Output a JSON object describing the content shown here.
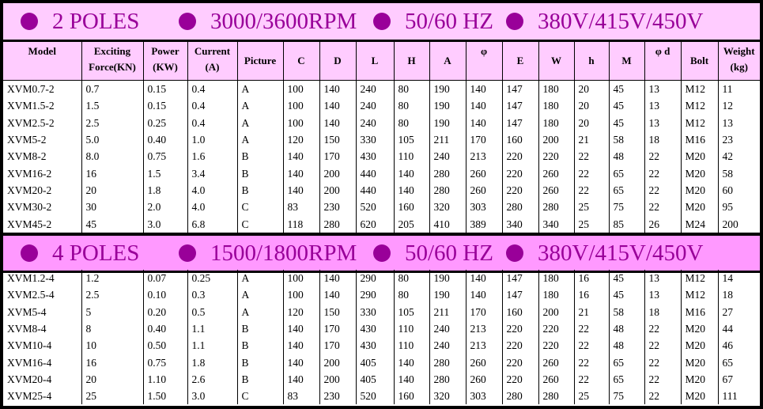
{
  "colors": {
    "banner_2_poles": "#ffccff",
    "banner_4_poles": "#ff99ff",
    "header_bg": "#ffccff",
    "accent": "#990099"
  },
  "banners": [
    {
      "items": [
        "2 POLES",
        "3000/3600RPM",
        "50/60 HZ",
        "380V/415V/450V"
      ]
    },
    {
      "items": [
        "4 POLES",
        "1500/1800RPM",
        "50/60 HZ",
        "380V/415V/450V"
      ]
    }
  ],
  "columns": [
    {
      "l1": "Model",
      "l2": ""
    },
    {
      "l1": "Exciting",
      "l2": "Force(KN)"
    },
    {
      "l1": "Power",
      "l2": "(KW)"
    },
    {
      "l1": "Current",
      "l2": "(A)"
    },
    {
      "l1": "Picture",
      "l2": ""
    },
    {
      "l1": "C",
      "l2": ""
    },
    {
      "l1": "D",
      "l2": ""
    },
    {
      "l1": "L",
      "l2": ""
    },
    {
      "l1": "H",
      "l2": ""
    },
    {
      "l1": "A",
      "l2": ""
    },
    {
      "l1": "φ",
      "l2": ""
    },
    {
      "l1": "E",
      "l2": ""
    },
    {
      "l1": "W",
      "l2": ""
    },
    {
      "l1": "h",
      "l2": ""
    },
    {
      "l1": "M",
      "l2": ""
    },
    {
      "l1": "φ d",
      "l2": ""
    },
    {
      "l1": "Bolt",
      "l2": ""
    },
    {
      "l1": "Weight",
      "l2": "(kg)"
    }
  ],
  "two_poles": [
    [
      "XVM0.7-2",
      "0.7",
      "0.15",
      "0.4",
      "A",
      "100",
      "140",
      "240",
      "80",
      "190",
      "140",
      "147",
      "180",
      "20",
      "45",
      "13",
      "M12",
      "11"
    ],
    [
      "XVM1.5-2",
      "1.5",
      "0.15",
      "0.4",
      "A",
      "100",
      "140",
      "240",
      "80",
      "190",
      "140",
      "147",
      "180",
      "20",
      "45",
      "13",
      "M12",
      "12"
    ],
    [
      "XVM2.5-2",
      "2.5",
      "0.25",
      "0.4",
      "A",
      "100",
      "140",
      "240",
      "80",
      "190",
      "140",
      "147",
      "180",
      "20",
      "45",
      "13",
      "M12",
      "13"
    ],
    [
      "XVM5-2",
      "5.0",
      "0.40",
      "1.0",
      "A",
      "120",
      "150",
      "330",
      "105",
      "211",
      "170",
      "160",
      "200",
      "21",
      "58",
      "18",
      "M16",
      "23"
    ],
    [
      "XVM8-2",
      "8.0",
      "0.75",
      "1.6",
      "B",
      "140",
      "170",
      "430",
      "110",
      "240",
      "213",
      "220",
      "220",
      "22",
      "48",
      "22",
      "M20",
      "42"
    ],
    [
      "XVM16-2",
      "16",
      "1.5",
      "3.4",
      "B",
      "140",
      "200",
      "440",
      "140",
      "280",
      "260",
      "220",
      "260",
      "22",
      "65",
      "22",
      "M20",
      "58"
    ],
    [
      "XVM20-2",
      "20",
      "1.8",
      "4.0",
      "B",
      "140",
      "200",
      "440",
      "140",
      "280",
      "260",
      "220",
      "260",
      "22",
      "65",
      "22",
      "M20",
      "60"
    ],
    [
      "XVM30-2",
      "30",
      "2.0",
      "4.0",
      "C",
      "83",
      "230",
      "520",
      "160",
      "320",
      "303",
      "280",
      "280",
      "25",
      "75",
      "22",
      "M20",
      "95"
    ],
    [
      "XVM45-2",
      "45",
      "3.0",
      "6.8",
      "C",
      "118",
      "280",
      "620",
      "205",
      "410",
      "389",
      "340",
      "340",
      "25",
      "85",
      "26",
      "M24",
      "200"
    ]
  ],
  "four_poles": [
    [
      "XVM1.2-4",
      "1.2",
      "0.07",
      "0.25",
      "A",
      "100",
      "140",
      "290",
      "80",
      "190",
      "140",
      "147",
      "180",
      "16",
      "45",
      "13",
      "M12",
      "14"
    ],
    [
      "XVM2.5-4",
      "2.5",
      "0.10",
      "0.3",
      "A",
      "100",
      "140",
      "290",
      "80",
      "190",
      "140",
      "147",
      "180",
      "16",
      "45",
      "13",
      "M12",
      "18"
    ],
    [
      "XVM5-4",
      "5",
      "0.20",
      "0.5",
      "A",
      "120",
      "150",
      "330",
      "105",
      "211",
      "170",
      "160",
      "200",
      "21",
      "58",
      "18",
      "M16",
      "27"
    ],
    [
      "XVM8-4",
      "8",
      "0.40",
      "1.1",
      "B",
      "140",
      "170",
      "430",
      "110",
      "240",
      "213",
      "220",
      "220",
      "22",
      "48",
      "22",
      "M20",
      "44"
    ],
    [
      "XVM10-4",
      "10",
      "0.50",
      "1.1",
      "B",
      "140",
      "170",
      "430",
      "110",
      "240",
      "213",
      "220",
      "220",
      "22",
      "48",
      "22",
      "M20",
      "46"
    ],
    [
      "XVM16-4",
      "16",
      "0.75",
      "1.8",
      "B",
      "140",
      "200",
      "405",
      "140",
      "280",
      "260",
      "220",
      "260",
      "22",
      "65",
      "22",
      "M20",
      "65"
    ],
    [
      "XVM20-4",
      "20",
      "1.10",
      "2.6",
      "B",
      "140",
      "200",
      "405",
      "140",
      "280",
      "260",
      "220",
      "260",
      "22",
      "65",
      "22",
      "M20",
      "67"
    ],
    [
      "XVM25-4",
      "25",
      "1.50",
      "3.0",
      "C",
      "83",
      "230",
      "520",
      "160",
      "320",
      "303",
      "280",
      "280",
      "25",
      "75",
      "22",
      "M20",
      "111"
    ]
  ]
}
